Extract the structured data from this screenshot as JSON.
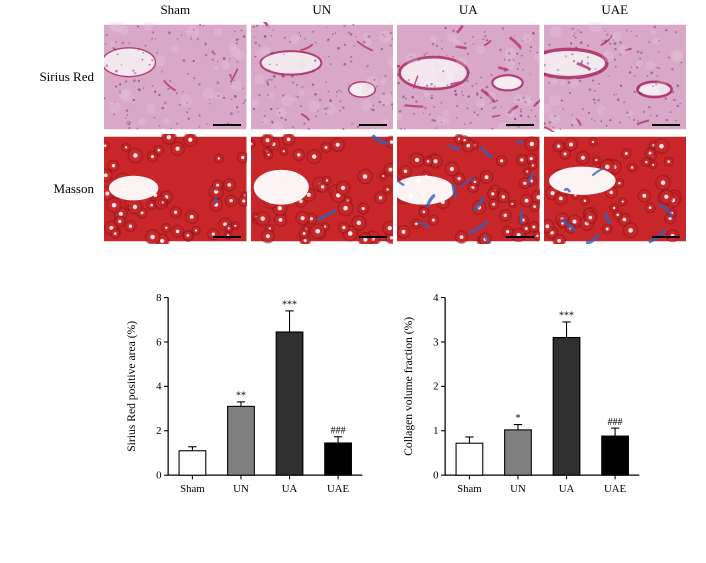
{
  "groups": [
    "Sham",
    "UN",
    "UA",
    "UAE"
  ],
  "stains": [
    "Sirius Red",
    "Masson"
  ],
  "histology_images": {
    "sirius": {
      "base_fill": "#d9a8c6",
      "vessel_stroke": "#b33b6e",
      "nuclei": "#6b3a7a",
      "pale": "#e9cfdf",
      "lumen": "#f6ecf2"
    },
    "masson": {
      "base_fill": "#c9262a",
      "fibrosis": "#3a5fb0",
      "lumen": "#ffffff",
      "dark": "#8a1518"
    }
  },
  "chart_sirius": {
    "type": "bar",
    "ylabel": "Sirius Red positive area (%)",
    "ylim": [
      0,
      8
    ],
    "ytick_step": 2,
    "bar_fill": [
      "#ffffff",
      "#808080",
      "#303030",
      "#000000"
    ],
    "bar_stroke": "#000000",
    "values": [
      1.1,
      3.1,
      6.45,
      1.45
    ],
    "errors": [
      0.18,
      0.2,
      0.95,
      0.28
    ],
    "sig": [
      "",
      "**",
      "***",
      "###"
    ],
    "bar_width": 0.55,
    "tick_fontsize": 13,
    "label_fontsize": 14,
    "bg": "#ffffff"
  },
  "chart_masson": {
    "type": "bar",
    "ylabel": "Collagen volume fraction (%)",
    "ylim": [
      0,
      4
    ],
    "ytick_step": 1,
    "bar_fill": [
      "#ffffff",
      "#808080",
      "#303030",
      "#000000"
    ],
    "bar_stroke": "#000000",
    "values": [
      0.72,
      1.02,
      3.1,
      0.88
    ],
    "errors": [
      0.14,
      0.12,
      0.35,
      0.18
    ],
    "sig": [
      "",
      "*",
      "***",
      "###"
    ],
    "bar_width": 0.55,
    "tick_fontsize": 13,
    "label_fontsize": 14,
    "bg": "#ffffff"
  }
}
